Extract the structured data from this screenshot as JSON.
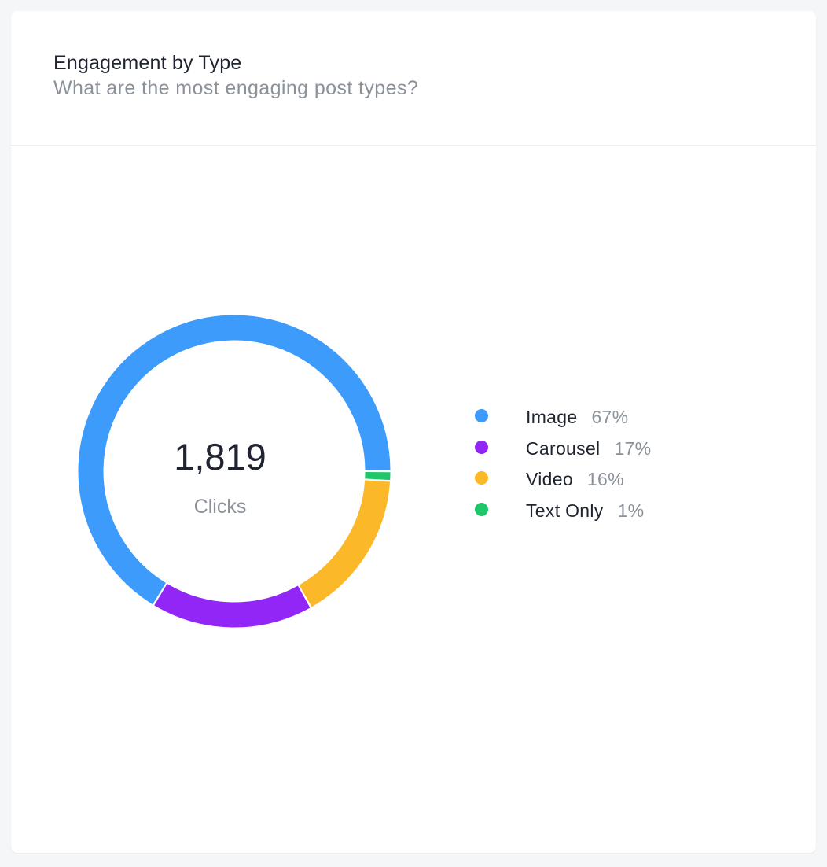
{
  "card": {
    "title": "Engagement by Type",
    "subtitle": "What are the most engaging post types?"
  },
  "center": {
    "value": "1,819",
    "label": "Clicks"
  },
  "legend": [
    {
      "label": "Image",
      "percent": "67%"
    },
    {
      "label": "Carousel",
      "percent": "17%"
    },
    {
      "label": "Video",
      "percent": "16%"
    },
    {
      "label": "Text Only",
      "percent": "1%"
    }
  ],
  "chart_data": {
    "type": "pie",
    "variant": "donut",
    "categories": [
      "Image",
      "Carousel",
      "Video",
      "Text Only"
    ],
    "values": [
      67,
      17,
      16,
      1
    ],
    "unit": "%",
    "total": 1819,
    "total_label": "Clicks",
    "colors": [
      "#3d9bfc",
      "#9126f7",
      "#fbb829",
      "#1fc66a"
    ],
    "legend_position": "right",
    "start": "3 o'clock, clockwise order Text Only, Video, Carousel, Image"
  }
}
